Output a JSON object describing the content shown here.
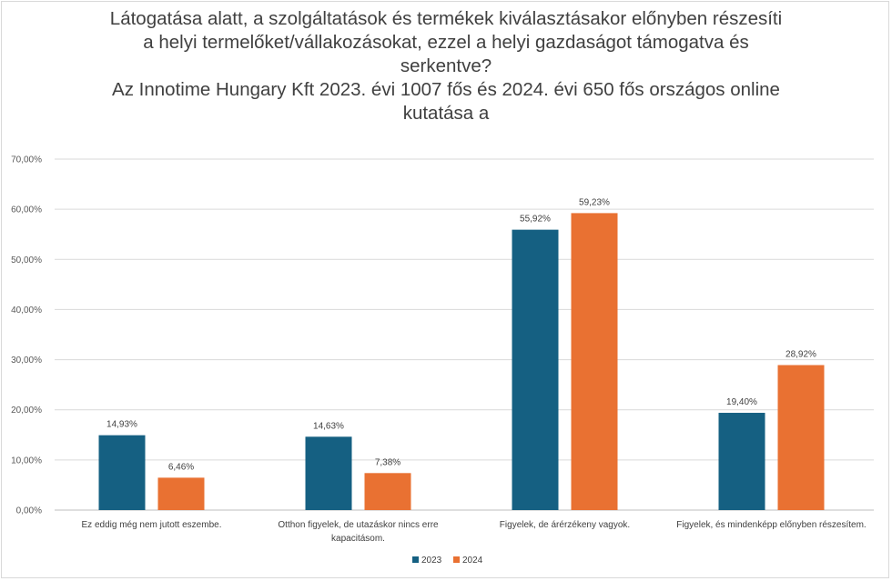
{
  "chart_data": {
    "type": "bar",
    "title_lines": [
      "Látogatása alatt, a szolgáltatások és termékek kiválasztásakor előnyben részesíti",
      "a helyi termelőket/vállakozásokat, ezzel a helyi gazdaságot támogatva és",
      "serkentve?",
      "Az Innotime Hungary Kft 2023. évi 1007 fős és 2024. évi 650 fős országos online",
      "kutatása a"
    ],
    "categories": [
      [
        "Ez eddig még nem jutott eszembe."
      ],
      [
        "Otthon figyelek, de utazáskor nincs erre",
        "kapacitásom."
      ],
      [
        "Figyelek, de árérzékeny vagyok."
      ],
      [
        "Figyelek, és mindenképp előnyben részesítem."
      ]
    ],
    "series": [
      {
        "name": "2023",
        "color": "#156082",
        "values": [
          14.93,
          14.63,
          55.92,
          19.4
        ],
        "labels": [
          "14,93%",
          "14,63%",
          "55,92%",
          "19,40%"
        ]
      },
      {
        "name": "2024",
        "color": "#E97132",
        "values": [
          6.46,
          7.38,
          59.23,
          28.92
        ],
        "labels": [
          "6,46%",
          "7,38%",
          "59,23%",
          "28,92%"
        ]
      }
    ],
    "ylim": [
      0,
      70
    ],
    "yticks": [
      "0,00%",
      "10,00%",
      "20,00%",
      "30,00%",
      "40,00%",
      "50,00%",
      "60,00%",
      "70,00%"
    ],
    "grid": true,
    "legend_position": "bottom"
  }
}
